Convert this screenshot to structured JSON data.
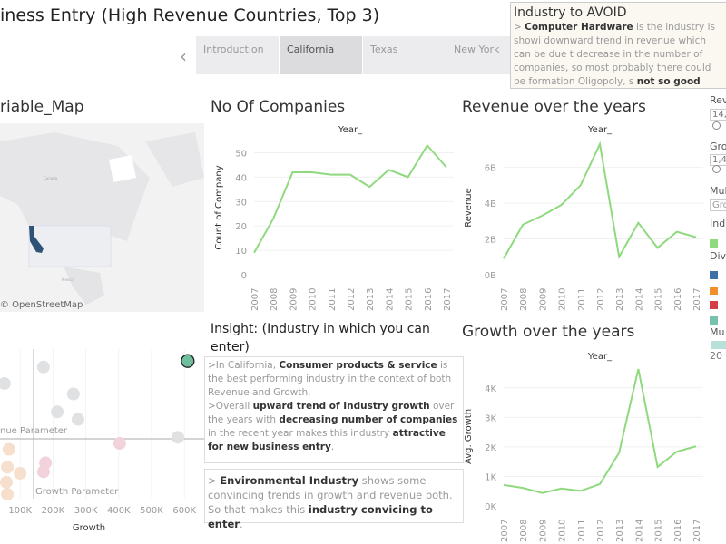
{
  "header": {
    "title": "iness Entry (High Revenue Countries, Top 3)"
  },
  "tabs": [
    {
      "label": "Introduction"
    },
    {
      "label": "California",
      "active": true
    },
    {
      "label": "Texas"
    },
    {
      "label": "New York"
    }
  ],
  "avoid": {
    "title": "Industry to AVOID",
    "segments": [
      {
        "text": "> ",
        "bold": false
      },
      {
        "text": "Computer Hardware",
        "bold": true
      },
      {
        "text": " is the industry is showi downward trend in revenue which can be due t decrease in the number of companies, so most probably there could be formation Oligopoly, s ",
        "bold": false
      },
      {
        "text": "not so good industry to enter",
        "bold": true
      },
      {
        "text": ".",
        "bold": false
      }
    ]
  },
  "map": {
    "title": "riable_Map",
    "attribution": "© OpenStreetMap",
    "labels": [
      "Canada",
      "Mexico"
    ],
    "highlight_color": "#2f5377"
  },
  "companies": {
    "title": "No Of Companies",
    "header": "Year_"
  },
  "revenue": {
    "title": "Revenue over the years",
    "header": "Year_"
  },
  "growth": {
    "title": "Growth over the years",
    "header": "Year_"
  },
  "insight": {
    "title": "Insight: (Industry in which you can enter)",
    "box1": [
      {
        "text": ">In California, ",
        "bold": false
      },
      {
        "text": "Consumer products & service",
        "bold": true
      },
      {
        "text": " is the best performing industry in the context of both Revenue and Growth.",
        "bold": false
      },
      {
        "br": true
      },
      {
        "text": ">Overall ",
        "bold": false
      },
      {
        "text": "upward trend of Industry growth",
        "bold": true
      },
      {
        "text": " over the years with ",
        "bold": false
      },
      {
        "text": "decreasing number of companies",
        "bold": true
      },
      {
        "text": " in the recent year makes this industry ",
        "bold": false
      },
      {
        "text": "attractive for new business entry",
        "bold": true
      },
      {
        "text": ".",
        "bold": false
      }
    ],
    "box2": [
      {
        "text": "> ",
        "bold": false
      },
      {
        "text": "Environmental Industry",
        "bold": true
      },
      {
        "text": " shows some convincing trends in growth and revenue both. So that makes this ",
        "bold": false
      },
      {
        "text": "industry convicing to enter",
        "bold": true
      },
      {
        "text": ".",
        "bold": false
      }
    ]
  },
  "right_panel": {
    "items": [
      {
        "label": "Rev",
        "value": "14,"
      },
      {
        "label": "Gro",
        "value": "1,4"
      },
      {
        "label": "Mul",
        "value": "Gro"
      },
      {
        "label": "Ind"
      },
      {
        "label": "Div"
      },
      {
        "label": "Mu"
      }
    ],
    "industry_legend": [
      {
        "color": "#8fd97f"
      }
    ],
    "division_legend": [
      {
        "color": "#3d6fa8"
      },
      {
        "color": "#f28e2b"
      },
      {
        "color": "#d63d4a"
      },
      {
        "color": "#76c2ae"
      }
    ],
    "mu_min": "20"
  },
  "chart_data": [
    {
      "type": "line",
      "name": "companies",
      "x": [
        2007,
        2008,
        2009,
        2010,
        2011,
        2012,
        2013,
        2014,
        2015,
        2016,
        2017
      ],
      "values": [
        9,
        23,
        42,
        42,
        41,
        41,
        36,
        43,
        40,
        53,
        44
      ],
      "ylabel": "Count of Company",
      "xlabel": "Year_",
      "yticks": [
        "0",
        "10",
        "20",
        "30",
        "40",
        "50"
      ],
      "ylim": [
        0,
        55
      ],
      "color": "#8fd97f"
    },
    {
      "type": "line",
      "name": "revenue",
      "x": [
        2007,
        2008,
        2009,
        2010,
        2011,
        2012,
        2013,
        2014,
        2015,
        2016,
        2017
      ],
      "values": [
        0.9,
        2.8,
        3.3,
        3.9,
        5.0,
        7.3,
        1.0,
        2.9,
        1.5,
        2.4,
        2.1
      ],
      "unit": "B",
      "ylabel": "Revenue",
      "xlabel": "Year_",
      "yticks": [
        "0B",
        "2B",
        "4B",
        "6B"
      ],
      "ylim": [
        0,
        7.5
      ],
      "color": "#8fd97f"
    },
    {
      "type": "line",
      "name": "growth",
      "x": [
        2007,
        2008,
        2009,
        2010,
        2011,
        2012,
        2013,
        2014,
        2015,
        2016,
        2017
      ],
      "values": [
        710,
        610,
        440,
        590,
        510,
        740,
        1800,
        4640,
        1320,
        1840,
        2020
      ],
      "ylabel": "Avg. Growth",
      "xlabel": "Year_",
      "yticks": [
        "0K",
        "1K",
        "2K",
        "3K",
        "4K"
      ],
      "ylim": [
        0,
        4700
      ],
      "color": "#8fd97f"
    },
    {
      "type": "scatter",
      "name": "industry-scatter",
      "xlabel": "Growth",
      "xticks": [
        "100K",
        "200K",
        "300K",
        "400K",
        "500K",
        "600K"
      ],
      "xlim": [
        0,
        650000
      ],
      "ylim": [
        0,
        1
      ],
      "ref_lines": {
        "growth_parameter": {
          "label": "Growth Parameter",
          "value": 141000
        },
        "revenue_parameter": {
          "label": "nue Parameter",
          "value": 0.4
        }
      },
      "points": [
        {
          "x": 610000,
          "y": 0.92,
          "color": "#6fbf9f",
          "highlight": true
        },
        {
          "x": 171000,
          "y": 0.88,
          "color": "#dfe1e3"
        },
        {
          "x": 52000,
          "y": 0.77,
          "color": "#dfe1e3"
        },
        {
          "x": 262000,
          "y": 0.7,
          "color": "#dfe1e3"
        },
        {
          "x": 213000,
          "y": 0.58,
          "color": "#dfe1e3"
        },
        {
          "x": 276000,
          "y": 0.53,
          "color": "#dfe1e3"
        },
        {
          "x": 580000,
          "y": 0.41,
          "color": "#dfe1e3"
        },
        {
          "x": 403000,
          "y": 0.37,
          "color": "#f2d3dc"
        },
        {
          "x": 66000,
          "y": 0.33,
          "color": "#f6dfcc"
        },
        {
          "x": 61000,
          "y": 0.21,
          "color": "#f6dfcc"
        },
        {
          "x": 100000,
          "y": 0.17,
          "color": "#f6dfcc"
        },
        {
          "x": 58000,
          "y": 0.11,
          "color": "#f6dfcc"
        },
        {
          "x": 61000,
          "y": 0.03,
          "color": "#f6dfcc"
        },
        {
          "x": 177000,
          "y": 0.24,
          "color": "#f2d3dc"
        },
        {
          "x": 171000,
          "y": 0.18,
          "color": "#f2d3dc"
        }
      ]
    }
  ]
}
